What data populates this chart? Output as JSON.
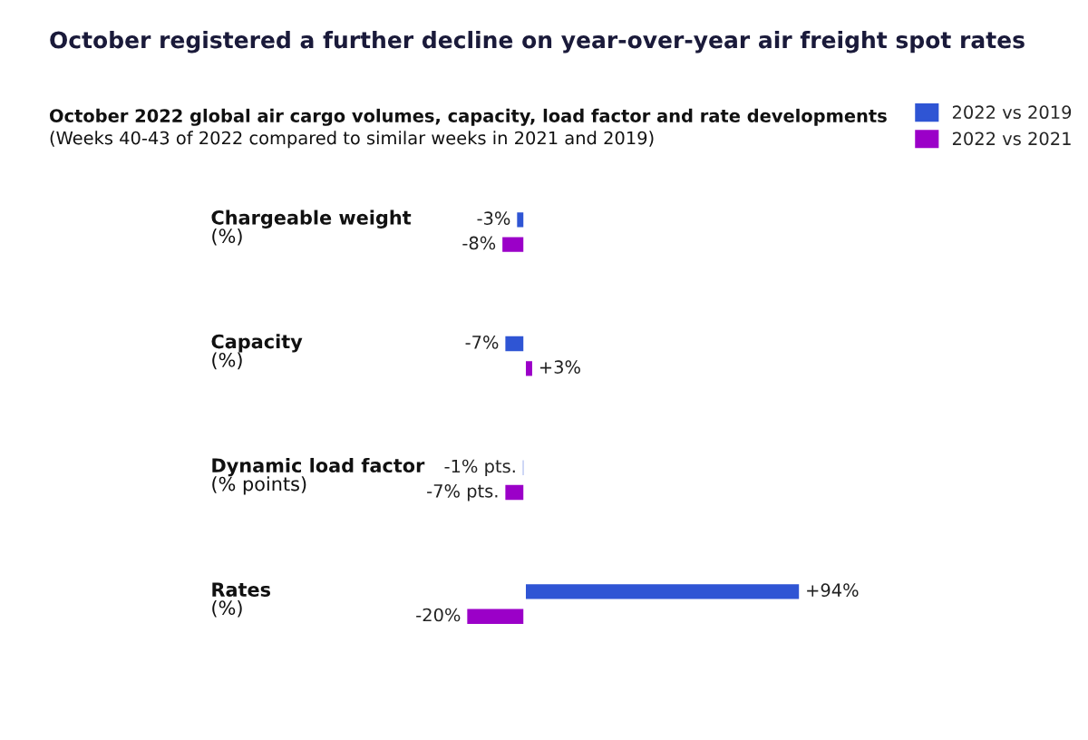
{
  "chart_data": {
    "type": "bar",
    "orientation": "horizontal",
    "tick_labels": false,
    "title": "October registered a further decline on year-over-year air freight spot rates",
    "subtitle": "October 2022 global air cargo volumes, capacity, load factor and rate developments",
    "annotations": [
      "(Weeks 40-43 of 2022 compared to similar weeks in 2021 and 2019)"
    ],
    "categories": [
      "Chargeable weight\n(%)",
      "Capacity\n(%)",
      "Dynamic load factor\n(% points)",
      "Rates\n(%)"
    ],
    "series": [
      {
        "name": "2022 vs 2019",
        "color": "#2f55d4",
        "values": [
          -3,
          -7,
          -1,
          94
        ],
        "value_labels": [
          "-3%",
          "-7%",
          "-1% pts.",
          "+94%"
        ]
      },
      {
        "name": "2022 vs 2021",
        "color": "#9b00c8",
        "values": [
          -8,
          3,
          -7,
          -20
        ],
        "value_labels": [
          "-8%",
          "+3%",
          "-7% pts.",
          "-20%"
        ]
      }
    ],
    "legend": "top right"
  }
}
